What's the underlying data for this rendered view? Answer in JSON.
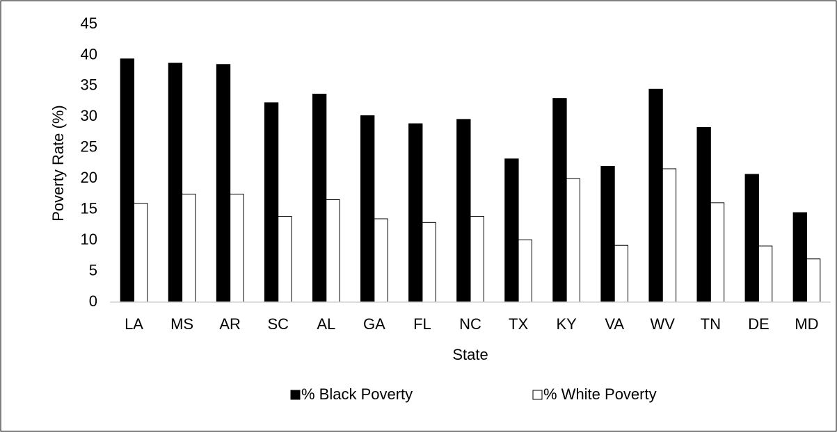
{
  "chart_data": {
    "type": "bar",
    "x_label": "State",
    "y_label": "Poverty Rate (%)",
    "categories": [
      "LA",
      "MS",
      "AR",
      "SC",
      "AL",
      "GA",
      "FL",
      "NC",
      "TX",
      "KY",
      "VA",
      "WV",
      "TN",
      "DE",
      "MD"
    ],
    "series": [
      {
        "name": "% Black Poverty",
        "color": "#000000",
        "values": [
          39.4,
          38.7,
          38.5,
          32.3,
          33.7,
          30.2,
          28.9,
          29.6,
          23.2,
          33.0,
          22.0,
          34.5,
          28.3,
          20.7,
          14.5
        ]
      },
      {
        "name": "% White Poverty",
        "color": "#ffffff",
        "values": [
          16.0,
          17.5,
          17.5,
          13.9,
          16.6,
          13.5,
          12.9,
          13.9,
          10.1,
          20.0,
          9.2,
          21.6,
          16.1,
          9.1,
          7.0
        ]
      }
    ],
    "ylim": [
      0,
      45
    ],
    "yticks": [
      0,
      5,
      10,
      15,
      20,
      25,
      30,
      35,
      40,
      45
    ],
    "grid": false,
    "legend": "bottom"
  }
}
